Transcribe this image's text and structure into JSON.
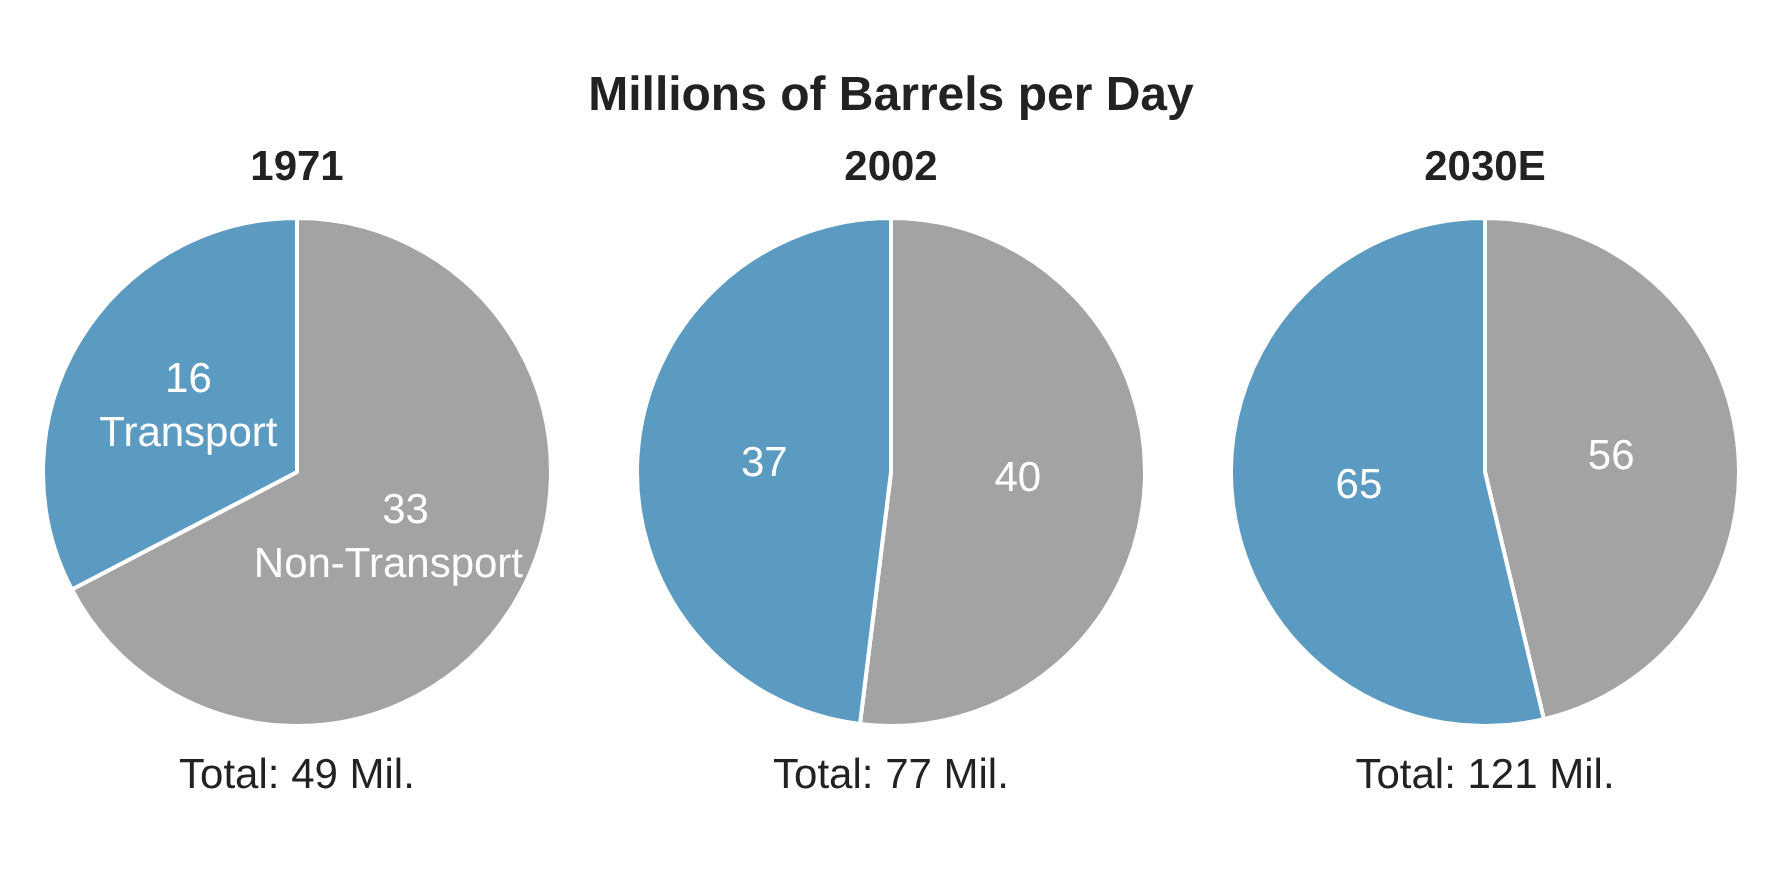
{
  "chart_data": [
    {
      "type": "other",
      "title": "Millions of Barrels per Day"
    },
    {
      "type": "pie",
      "subtitle": "1971",
      "categories": [
        "Non-Transport",
        "Transport"
      ],
      "values": [
        33,
        16
      ],
      "colors": [
        "#a3a3a3",
        "#5b9bc2"
      ],
      "data_labels": true,
      "annotations": [
        "Total: 49 Mil."
      ]
    },
    {
      "type": "pie",
      "subtitle": "2002",
      "categories": [
        null,
        null
      ],
      "values": [
        40,
        37
      ],
      "colors": [
        "#a3a3a3",
        "#5b9bc2"
      ],
      "data_labels": true,
      "annotations": [
        "Total: 77 Mil."
      ]
    },
    {
      "type": "pie",
      "subtitle": "2030E",
      "categories": [
        null,
        null
      ],
      "values": [
        56,
        65
      ],
      "colors": [
        "#a3a3a3",
        "#5b9bc2"
      ],
      "data_labels": true,
      "annotations": [
        "Total: 121 Mil."
      ]
    }
  ]
}
